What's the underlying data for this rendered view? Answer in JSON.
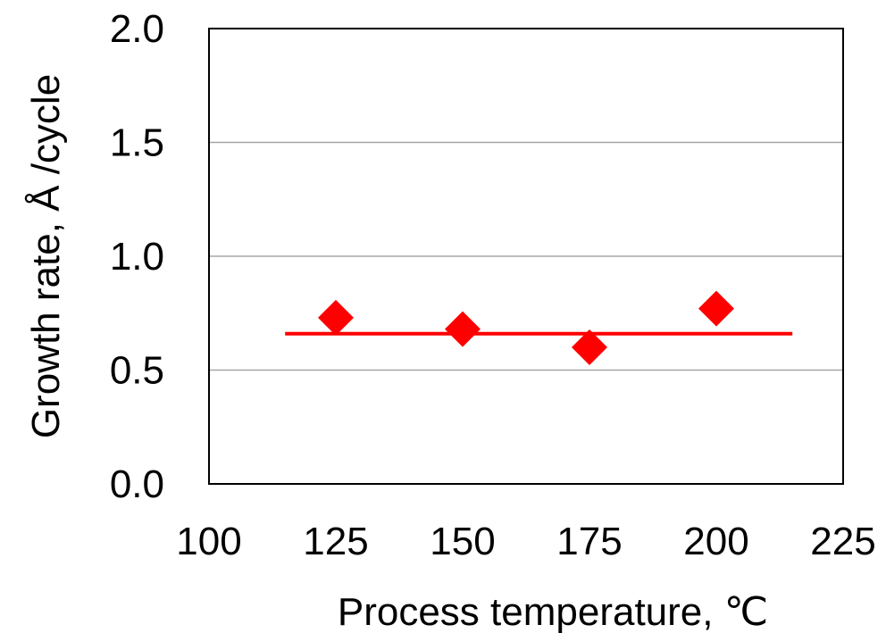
{
  "chart_data": {
    "type": "scatter",
    "xlabel": "Process temperature, ℃",
    "ylabel": "Growth rate,  Å /cycle",
    "xlim": [
      100,
      225
    ],
    "ylim": [
      0.0,
      2.0
    ],
    "x_ticks": [
      "100",
      "125",
      "150",
      "175",
      "200",
      "225"
    ],
    "y_ticks": [
      "0.0",
      "0.5",
      "1.0",
      "1.5",
      "2.0"
    ],
    "grid": "horizontal",
    "legend": "none",
    "series": [
      {
        "marker": "diamond",
        "color": "#ff0000",
        "points": [
          {
            "x": 125,
            "y": 0.73
          },
          {
            "x": 150,
            "y": 0.68
          },
          {
            "x": 175,
            "y": 0.6
          },
          {
            "x": 200,
            "y": 0.77
          }
        ]
      }
    ],
    "trend_line": {
      "color": "#ff0000",
      "x": [
        115,
        215
      ],
      "y": [
        0.66,
        0.66
      ]
    }
  }
}
